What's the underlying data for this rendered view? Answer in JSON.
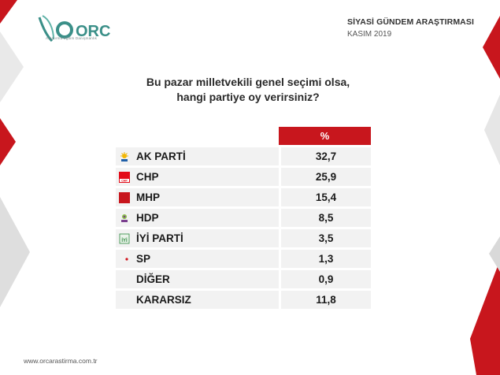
{
  "brand": {
    "name": "ORC",
    "tagline": "Araştırma Eğitim Danışmanlık"
  },
  "header": {
    "title": "SİYASİ GÜNDEM ARAŞTIRMASI",
    "date": "KASIM 2019"
  },
  "question": {
    "line1": "Bu pazar milletvekili genel seçimi olsa,",
    "line2": "hangi partiye oy verirsiniz?"
  },
  "footer": {
    "url": "www.orcarastirma.com.tr"
  },
  "colors": {
    "accent": "#c8161d",
    "row_bg": "#f2f2f2",
    "logo_green": "#3a8f88"
  },
  "chart_data": {
    "type": "table",
    "column_header": "%",
    "categories": [
      "AK PARTİ",
      "CHP",
      "MHP",
      "HDP",
      "İYİ PARTİ",
      "SP",
      "DİĞER",
      "KARARSIZ"
    ],
    "values": [
      "32,7",
      "25,9",
      "15,4",
      "8,5",
      "3,5",
      "1,3",
      "0,9",
      "11,8"
    ],
    "icons": [
      "akp-logo-icon",
      "chp-logo-icon",
      "mhp-logo-icon",
      "hdp-logo-icon",
      "iyi-logo-icon",
      "sp-logo-icon",
      "",
      ""
    ]
  }
}
